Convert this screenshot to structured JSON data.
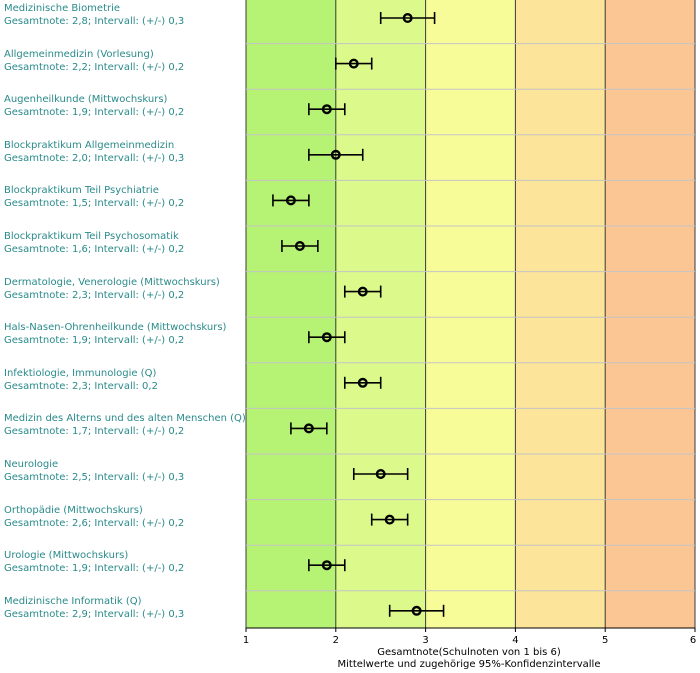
{
  "chart_data": {
    "type": "scatter",
    "xlabel": "Gesamtnote(Schulnoten von 1 bis 6)",
    "subtitle": "Mittelwerte und zugehörige 95%-Konfidenzintervalle",
    "xlim": [
      1,
      6
    ],
    "xticks": [
      "1",
      "2",
      "3",
      "4",
      "5",
      "6"
    ],
    "bands": [
      {
        "from": 1,
        "to": 2,
        "color": "#b6f274"
      },
      {
        "from": 2,
        "to": 3,
        "color": "#dcfa8c"
      },
      {
        "from": 3,
        "to": 4,
        "color": "#f8fc98"
      },
      {
        "from": 4,
        "to": 5,
        "color": "#fce49a"
      },
      {
        "from": 5,
        "to": 6,
        "color": "#fcc694"
      }
    ],
    "items": [
      {
        "name": "Medizinische Biometrie",
        "stats": "Gesamtnote: 2,8;  Intervall: (+/-) 0,3",
        "mean": 2.8,
        "half": 0.3
      },
      {
        "name": "Allgemeinmedizin (Vorlesung)",
        "stats": "Gesamtnote: 2,2;  Intervall: (+/-) 0,2",
        "mean": 2.2,
        "half": 0.2
      },
      {
        "name": "Augenheilkunde (Mittwochskurs)",
        "stats": "Gesamtnote: 1,9;  Intervall: (+/-) 0,2",
        "mean": 1.9,
        "half": 0.2
      },
      {
        "name": "Blockpraktikum Allgemeinmedizin",
        "stats": "Gesamtnote: 2,0;  Intervall: (+/-) 0,3",
        "mean": 2.0,
        "half": 0.3
      },
      {
        "name": "Blockpraktikum Teil Psychiatrie",
        "stats": "Gesamtnote: 1,5;  Intervall: (+/-) 0,2",
        "mean": 1.5,
        "half": 0.2
      },
      {
        "name": "Blockpraktikum Teil Psychosomatik",
        "stats": "Gesamtnote: 1,6;  Intervall: (+/-) 0,2",
        "mean": 1.6,
        "half": 0.2
      },
      {
        "name": "Dermatologie, Venerologie (Mittwochskurs)",
        "stats": "Gesamtnote: 2,3;  Intervall: (+/-) 0,2",
        "mean": 2.3,
        "half": 0.2
      },
      {
        "name": "Hals-Nasen-Ohrenheilkunde (Mittwochskurs)",
        "stats": "Gesamtnote: 1,9;  Intervall: (+/-) 0,2",
        "mean": 1.9,
        "half": 0.2
      },
      {
        "name": "Infektiologie, Immunologie (Q)",
        "stats": "Gesamtnote: 2,3;  Intervall: 0,2",
        "mean": 2.3,
        "half": 0.2
      },
      {
        "name": "Medizin des Alterns und des alten Menschen (Q)",
        "stats": "Gesamtnote: 1,7;  Intervall: (+/-) 0,2",
        "mean": 1.7,
        "half": 0.2
      },
      {
        "name": "Neurologie",
        "stats": "Gesamtnote: 2,5;  Intervall: (+/-) 0,3",
        "mean": 2.5,
        "half": 0.3
      },
      {
        "name": "Orthopädie (Mittwochskurs)",
        "stats": "Gesamtnote: 2,6;  Intervall: (+/-) 0,2",
        "mean": 2.6,
        "half": 0.2
      },
      {
        "name": "Urologie (Mittwochskurs)",
        "stats": "Gesamtnote: 1,9;  Intervall: (+/-) 0,2",
        "mean": 1.9,
        "half": 0.2
      },
      {
        "name": "Medizinische Informatik (Q)",
        "stats": "Gesamtnote: 2,9;  Intervall: (+/-) 0,3",
        "mean": 2.9,
        "half": 0.3
      }
    ]
  }
}
